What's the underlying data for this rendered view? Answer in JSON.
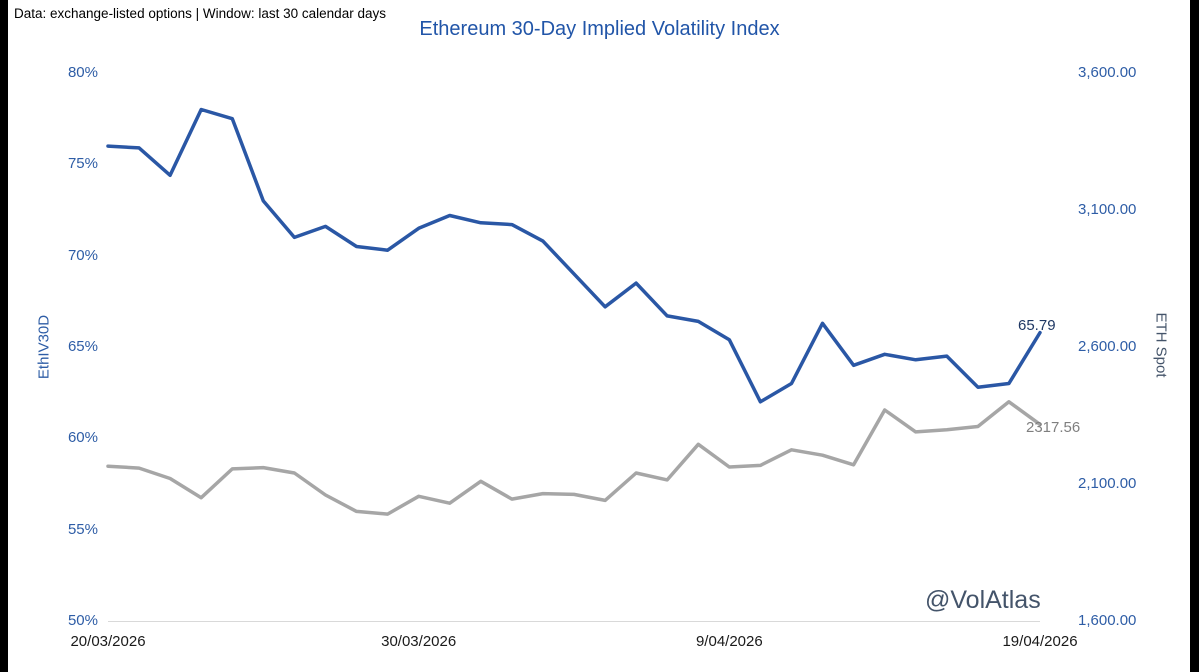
{
  "page": {
    "note": "Data: exchange-listed options | Window: last 30 calendar days",
    "watermark": "@VolAtlas"
  },
  "colors": {
    "iv_line": "#2A57A5",
    "spot_line": "#A6A6A6",
    "title_blue": "#2155A8",
    "tick_blue": "#2E5DA6",
    "slate": "#44546A",
    "iv_end_label": "#1F3864",
    "spot_end_label": "#7F7F7F",
    "axis_line": "#D9D9D9"
  },
  "chart_data": {
    "type": "line",
    "title": "Ethereum 30-Day Implied Volatility Index",
    "grid": false,
    "legend": "none",
    "x_tick_labels": [
      "20/03/2026",
      "30/03/2026",
      "9/04/2026",
      "19/04/2026"
    ],
    "left_axis": {
      "label": "EthIV30D",
      "ticks": [
        "80%",
        "75%",
        "70%",
        "65%",
        "60%",
        "55%",
        "50%"
      ],
      "min": 50,
      "max": 80
    },
    "right_axis": {
      "label": "ETH Spot",
      "ticks": [
        "3,600.00",
        "3,100.00",
        "2,600.00",
        "2,100.00",
        "1,600.00"
      ],
      "min": 1600,
      "max": 3600
    },
    "series": [
      {
        "name": "EthIV30D",
        "axis": "left",
        "color": "#2A57A5",
        "end_label": "65.79",
        "values": [
          76.0,
          75.9,
          74.4,
          78.0,
          77.5,
          73.0,
          71.0,
          71.6,
          70.5,
          70.3,
          71.5,
          72.2,
          71.8,
          71.7,
          70.8,
          69.0,
          67.2,
          68.5,
          66.7,
          66.4,
          65.4,
          62.0,
          63.0,
          66.3,
          64.0,
          64.6,
          64.3,
          64.5,
          62.8,
          63.0,
          65.79
        ]
      },
      {
        "name": "ETH Spot",
        "axis": "right",
        "color": "#A6A6A6",
        "end_label": "2317.56",
        "values": [
          2165,
          2158,
          2120,
          2050,
          2155,
          2160,
          2140,
          2060,
          2000,
          1990,
          2055,
          2030,
          2110,
          2045,
          2065,
          2062,
          2040,
          2140,
          2115,
          2245,
          2162,
          2168,
          2225,
          2205,
          2170,
          2370,
          2290,
          2298,
          2310,
          2400,
          2317.56
        ]
      }
    ]
  }
}
